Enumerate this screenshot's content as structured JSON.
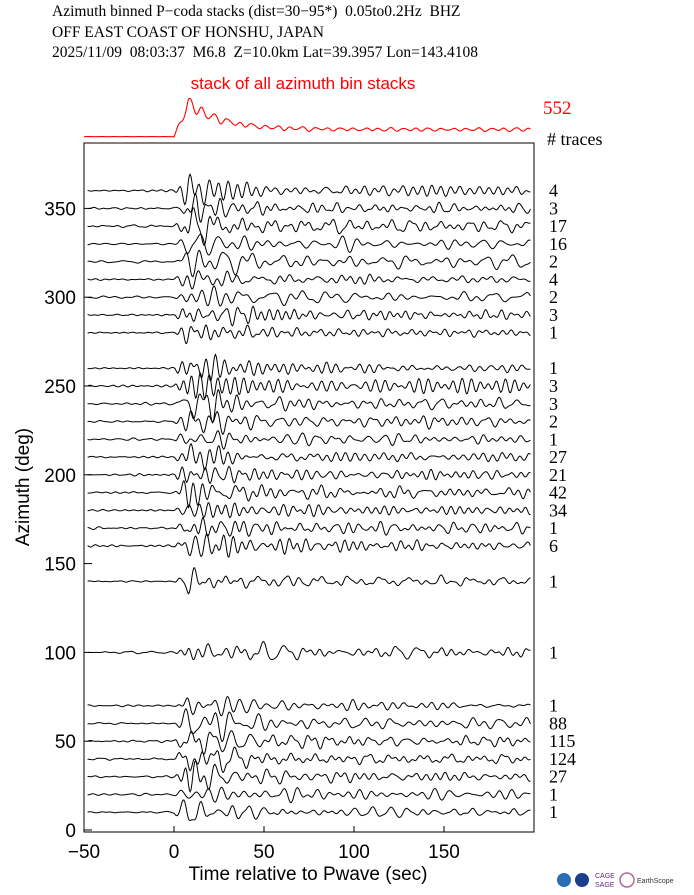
{
  "header": {
    "line1": "Azimuth binned P−coda stacks (dist=30−95*)  0.05to0.2Hz  BHZ",
    "line2": "OFF EAST COAST OF HONSHU, JAPAN",
    "line3": "2025/11/09  08:03:37  M6.8  Z=10.0km Lat=39.3957 Lon=143.4108"
  },
  "stack": {
    "label": "stack of all azimuth bin stacks",
    "count": "552",
    "count_header": "# traces",
    "color": "#ff0000"
  },
  "chart_data": {
    "type": "line",
    "xlabel": "Time relative to Pwave (sec)",
    "ylabel": "Azimuth (deg)",
    "xlim": [
      -50,
      200
    ],
    "ylim": [
      0,
      390
    ],
    "xticks": [
      -50,
      0,
      50,
      100,
      150
    ],
    "yticks": [
      0,
      50,
      100,
      150,
      200,
      250,
      300,
      350
    ],
    "series": [
      {
        "azimuth": 360,
        "count": "4"
      },
      {
        "azimuth": 350,
        "count": "3"
      },
      {
        "azimuth": 340,
        "count": "17"
      },
      {
        "azimuth": 330,
        "count": "16"
      },
      {
        "azimuth": 320,
        "count": "2"
      },
      {
        "azimuth": 310,
        "count": "4"
      },
      {
        "azimuth": 300,
        "count": "2"
      },
      {
        "azimuth": 290,
        "count": "3"
      },
      {
        "azimuth": 280,
        "count": "1"
      },
      {
        "azimuth": 260,
        "count": "1"
      },
      {
        "azimuth": 250,
        "count": "3"
      },
      {
        "azimuth": 240,
        "count": "3"
      },
      {
        "azimuth": 230,
        "count": "2"
      },
      {
        "azimuth": 220,
        "count": "1"
      },
      {
        "azimuth": 210,
        "count": "27"
      },
      {
        "azimuth": 200,
        "count": "21"
      },
      {
        "azimuth": 190,
        "count": "42"
      },
      {
        "azimuth": 180,
        "count": "34"
      },
      {
        "azimuth": 170,
        "count": "1"
      },
      {
        "azimuth": 160,
        "count": "6"
      },
      {
        "azimuth": 140,
        "count": "1"
      },
      {
        "azimuth": 100,
        "count": "1"
      },
      {
        "azimuth": 70,
        "count": "1"
      },
      {
        "azimuth": 60,
        "count": "88"
      },
      {
        "azimuth": 50,
        "count": "115"
      },
      {
        "azimuth": 40,
        "count": "124"
      },
      {
        "azimuth": 30,
        "count": "27"
      },
      {
        "azimuth": 20,
        "count": "1"
      },
      {
        "azimuth": 10,
        "count": "1"
      }
    ]
  },
  "logos": {
    "l1": "CAGE",
    "l2": "SAGE",
    "l3": "EarthScope"
  }
}
